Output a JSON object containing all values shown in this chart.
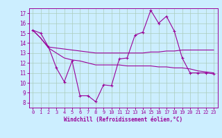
{
  "xlabel": "Windchill (Refroidissement éolien,°C)",
  "background_color": "#cceeff",
  "grid_color": "#aaccbb",
  "line_color": "#990099",
  "xlim": [
    -0.5,
    23.5
  ],
  "ylim": [
    7.5,
    17.5
  ],
  "yticks": [
    8,
    9,
    10,
    11,
    12,
    13,
    14,
    15,
    16,
    17
  ],
  "xticks": [
    0,
    1,
    2,
    3,
    4,
    5,
    6,
    7,
    8,
    9,
    10,
    11,
    12,
    13,
    14,
    15,
    16,
    17,
    18,
    19,
    20,
    21,
    22,
    23
  ],
  "series1_x": [
    0,
    1,
    2,
    3,
    4,
    5,
    6,
    7,
    8,
    9,
    10,
    11,
    12,
    13,
    14,
    15,
    16,
    17,
    18,
    19,
    20,
    21,
    22,
    23
  ],
  "series1_y": [
    15.3,
    15.0,
    13.6,
    11.5,
    10.1,
    12.2,
    8.7,
    8.7,
    8.1,
    9.8,
    9.7,
    12.4,
    12.5,
    14.8,
    15.1,
    17.3,
    16.0,
    16.7,
    15.2,
    12.5,
    11.0,
    11.0,
    11.0,
    10.9
  ],
  "series2_x": [
    0,
    1,
    2,
    3,
    4,
    5,
    6,
    7,
    8,
    9,
    10,
    11,
    12,
    13,
    14,
    15,
    16,
    17,
    18,
    19,
    20,
    21,
    22,
    23
  ],
  "series2_y": [
    15.3,
    14.5,
    13.6,
    13.5,
    13.4,
    13.3,
    13.2,
    13.1,
    13.0,
    13.0,
    13.0,
    13.0,
    13.0,
    13.0,
    13.0,
    13.1,
    13.1,
    13.2,
    13.2,
    13.3,
    13.3,
    13.3,
    13.3,
    13.3
  ],
  "series3_x": [
    0,
    1,
    2,
    3,
    4,
    5,
    6,
    7,
    8,
    9,
    10,
    11,
    12,
    13,
    14,
    15,
    16,
    17,
    18,
    19,
    20,
    21,
    22,
    23
  ],
  "series3_y": [
    15.3,
    14.5,
    13.5,
    13.0,
    12.5,
    12.3,
    12.2,
    12.0,
    11.8,
    11.8,
    11.8,
    11.8,
    11.7,
    11.7,
    11.7,
    11.7,
    11.6,
    11.6,
    11.5,
    11.5,
    11.4,
    11.2,
    11.1,
    11.0
  ]
}
